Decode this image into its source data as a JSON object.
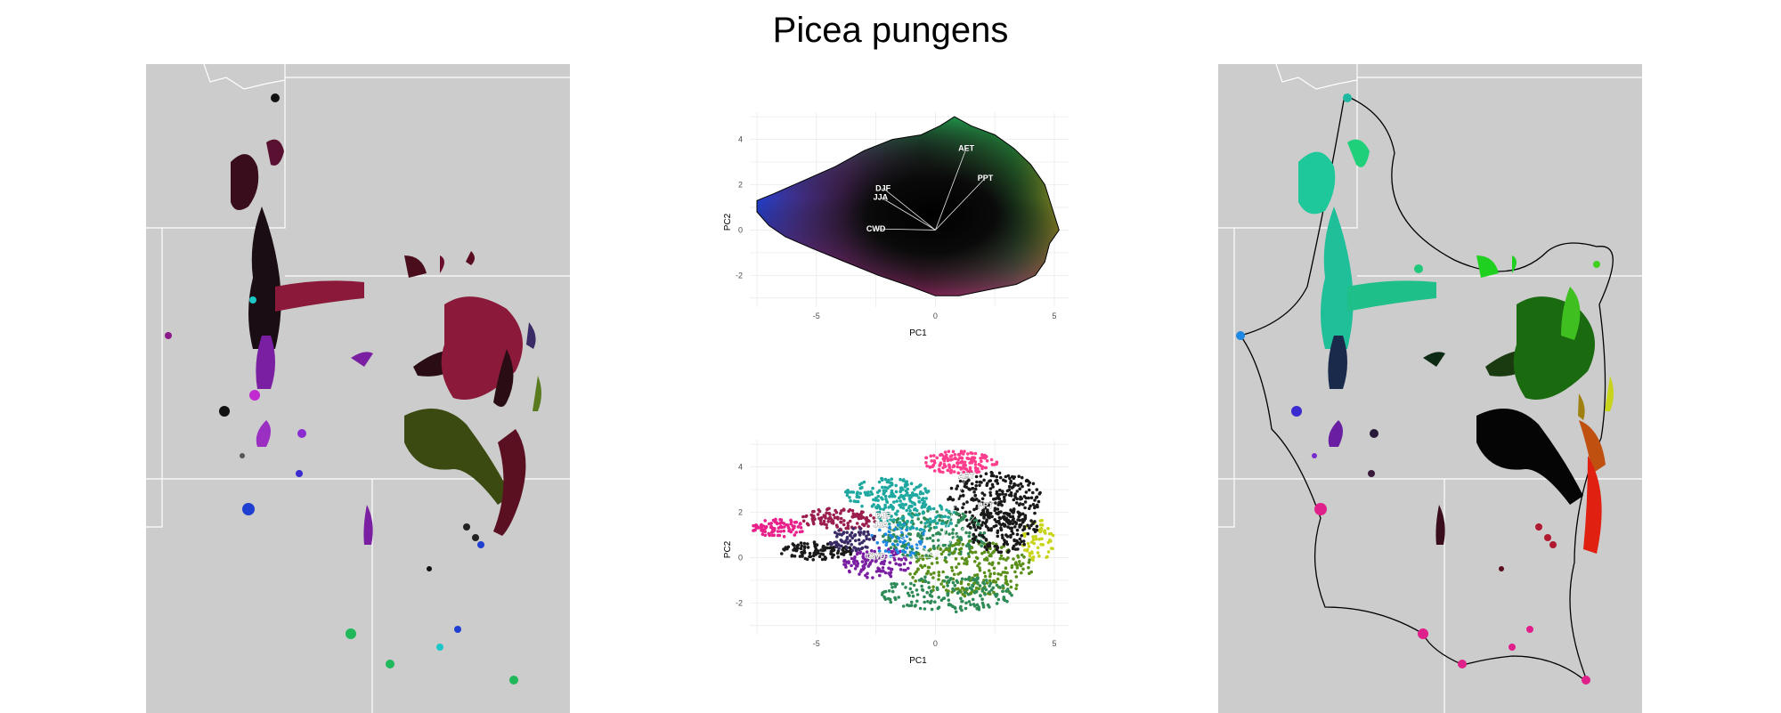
{
  "figure": {
    "title": "Picea pungens"
  },
  "chart_data": [
    {
      "type": "map",
      "panel": "left",
      "description_key": "species occurrence map colored by climate PCA position",
      "base_color": "#cccccc",
      "border_color": "#ffffff",
      "colors": [
        "#000000",
        "#8b1a3a",
        "#c2185b",
        "#7a1fa2",
        "#1f3fd1",
        "#1fb85a",
        "#7fbf1a",
        "#1ec7c7"
      ]
    },
    {
      "type": "scatter",
      "panel": "pca-top",
      "xlabel": "PC1",
      "ylabel": "PC2",
      "xlim": [
        -7.8,
        5.6
      ],
      "ylim": [
        -3.4,
        5.2
      ],
      "xticks": [
        -5,
        0,
        5
      ],
      "yticks": [
        -2,
        0,
        2,
        4
      ],
      "grid": true,
      "hull": [
        [
          -7.5,
          1.3
        ],
        [
          -6.8,
          1.6
        ],
        [
          -5.5,
          2.2
        ],
        [
          -4.2,
          2.8
        ],
        [
          -3.0,
          3.5
        ],
        [
          -1.8,
          4.0
        ],
        [
          -0.6,
          4.2
        ],
        [
          0.2,
          4.6
        ],
        [
          0.8,
          5.0
        ],
        [
          1.5,
          4.6
        ],
        [
          2.5,
          4.2
        ],
        [
          3.3,
          3.6
        ],
        [
          4.0,
          2.9
        ],
        [
          4.6,
          2.0
        ],
        [
          4.9,
          1.0
        ],
        [
          5.2,
          0.0
        ],
        [
          4.8,
          -0.6
        ],
        [
          4.6,
          -1.4
        ],
        [
          4.2,
          -2.0
        ],
        [
          3.4,
          -2.4
        ],
        [
          2.4,
          -2.6
        ],
        [
          1.0,
          -2.9
        ],
        [
          0.0,
          -2.9
        ],
        [
          -1.0,
          -2.5
        ],
        [
          -2.4,
          -2.0
        ],
        [
          -3.8,
          -1.4
        ],
        [
          -5.2,
          -0.8
        ],
        [
          -6.3,
          -0.3
        ],
        [
          -7.0,
          0.2
        ],
        [
          -7.5,
          0.8
        ]
      ],
      "vectors": [
        {
          "label": "AET",
          "x": 1.3,
          "y": 3.6
        },
        {
          "label": "PPT",
          "x": 2.1,
          "y": 2.3
        },
        {
          "label": "DJF",
          "x": -2.2,
          "y": 1.85
        },
        {
          "label": "JJA",
          "x": -2.3,
          "y": 1.45
        },
        {
          "label": "CWD",
          "x": -2.5,
          "y": 0.05
        }
      ]
    },
    {
      "type": "scatter",
      "panel": "pca-bottom",
      "xlabel": "PC1",
      "ylabel": "PC2",
      "xlim": [
        -7.8,
        5.6
      ],
      "ylim": [
        -3.4,
        5.2
      ],
      "xticks": [
        -5,
        0,
        5
      ],
      "yticks": [
        -2,
        0,
        2,
        4
      ],
      "grid": true,
      "cluster_colors": [
        "#e8208a",
        "#ff3d8c",
        "#c71f74",
        "#1a1a1a",
        "#2e8b57",
        "#1fa8a0",
        "#7b1fa2",
        "#3a2a66",
        "#5a8f1a",
        "#c8d41a",
        "#1e88e5",
        "#9b1e4f"
      ],
      "vectors": [
        {
          "label": "AET",
          "x": 1.3,
          "y": 3.6
        },
        {
          "label": "PPT",
          "x": 2.1,
          "y": 2.3
        },
        {
          "label": "DJF",
          "x": -2.2,
          "y": 1.85
        },
        {
          "label": "JJA",
          "x": -2.3,
          "y": 1.45
        },
        {
          "label": "CWD",
          "x": -2.5,
          "y": 0.05
        }
      ]
    },
    {
      "type": "map",
      "panel": "right",
      "description_key": "occurrence map colored by PCA hull color with range boundary",
      "base_color": "#cccccc",
      "border_color": "#ffffff",
      "boundary_color": "#000000"
    }
  ]
}
